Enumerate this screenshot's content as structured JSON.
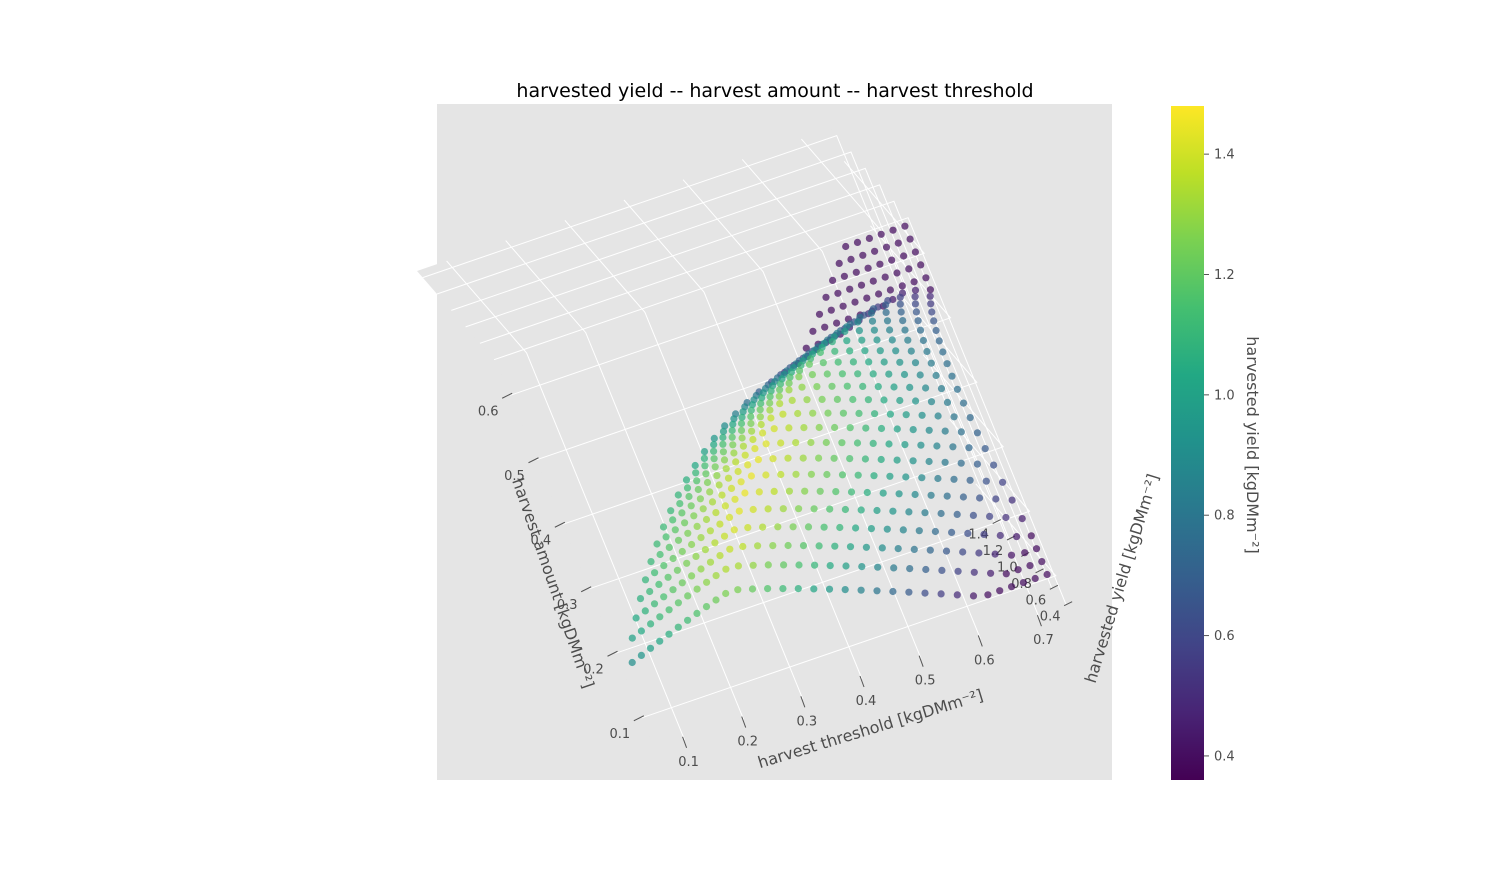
{
  "chart_data": {
    "type": "scatter",
    "projection": "3d",
    "title": "harvested yield -- harvest amount -- harvest threshold",
    "xlabel": "harvest amount [kgDMm⁻²]",
    "ylabel": "harvest threshold [kgDMm⁻²]",
    "zlabel": "harvested yield [kgDMm⁻²]",
    "colorbar_label": "harvested yield [kgDMm⁻²]",
    "colormap": "viridis",
    "grid": true,
    "background": "#e5e5e5",
    "x_ticks": [
      "0.1",
      "0.2",
      "0.3",
      "0.4",
      "0.5",
      "0.6"
    ],
    "y_ticks": [
      "0.1",
      "0.2",
      "0.3",
      "0.4",
      "0.5",
      "0.6",
      "0.7"
    ],
    "z_ticks": [
      "0.4",
      "0.6",
      "0.8",
      "1.0",
      "1.2",
      "1.4"
    ],
    "colorbar_ticks": [
      "0.4",
      "0.6",
      "0.8",
      "1.0",
      "1.2",
      "1.4"
    ],
    "xlim": [
      0.05,
      0.65
    ],
    "ylim": [
      0.05,
      0.75
    ],
    "zlim": [
      0.36,
      1.48
    ],
    "color_range": [
      0.36,
      1.48
    ],
    "x_range": [
      0.1,
      0.64
    ],
    "y_range": [
      0.1,
      0.74
    ],
    "grid_step": 0.02,
    "constraint": "harvest amount <= harvest threshold",
    "series": [
      {
        "description": "points over the grid harvest amount <= harvest threshold; yield approx. 1.45 at amount~0.2 and threshold~0.4, falling to ~0.5 at small amounts with large thresholds and ~1.1 at large amounts"
      }
    ]
  }
}
